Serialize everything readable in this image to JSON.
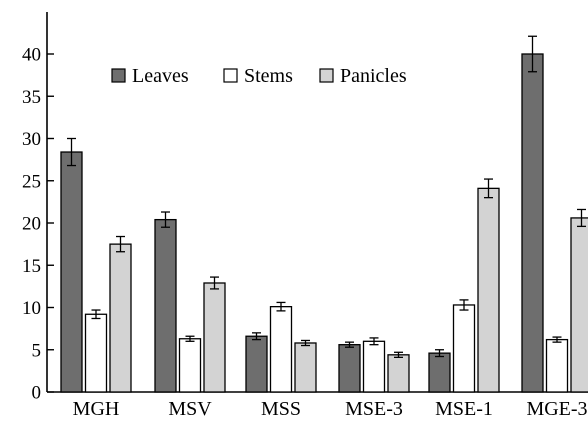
{
  "chart_data": {
    "type": "bar",
    "title": "",
    "xlabel": "",
    "ylabel": "",
    "ylim": [
      0,
      45
    ],
    "yticks": [
      0,
      5,
      10,
      15,
      20,
      25,
      30,
      35,
      40
    ],
    "grid": false,
    "legend_position": "top",
    "categories": [
      "MGH",
      "MSV",
      "MSS",
      "MSE-3",
      "MSE-1",
      "MGE-3"
    ],
    "series": [
      {
        "name": "Leaves",
        "color": "#6e6e6e",
        "values": [
          28.4,
          20.4,
          6.6,
          5.6,
          4.6,
          40.0
        ],
        "errors": [
          1.6,
          0.9,
          0.4,
          0.3,
          0.4,
          2.1
        ]
      },
      {
        "name": "Stems",
        "color": "#ffffff",
        "values": [
          9.2,
          6.3,
          10.1,
          6.0,
          10.3,
          6.2
        ],
        "errors": [
          0.5,
          0.3,
          0.5,
          0.4,
          0.6,
          0.3
        ]
      },
      {
        "name": "Panicles",
        "color": "#d3d3d3",
        "values": [
          17.5,
          12.9,
          5.8,
          4.4,
          24.1,
          20.6
        ],
        "errors": [
          0.9,
          0.7,
          0.3,
          0.3,
          1.1,
          1.0
        ]
      }
    ]
  }
}
